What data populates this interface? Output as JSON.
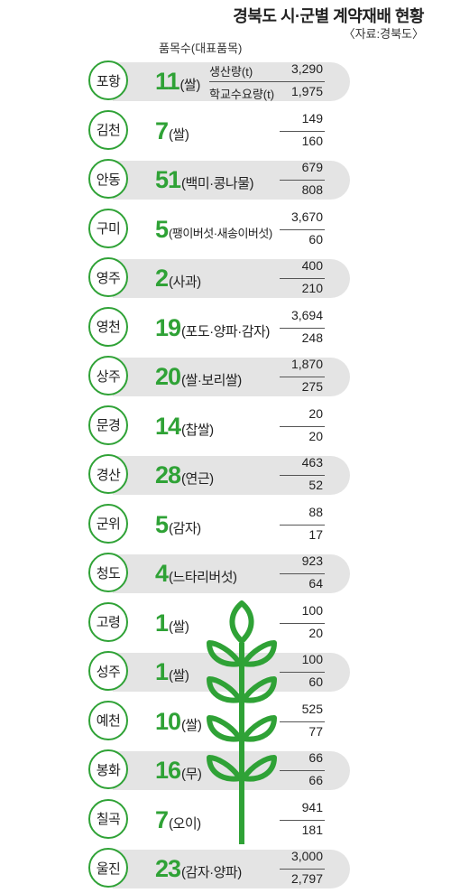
{
  "header": {
    "title": "경북도 시·군별 계약재배 현황",
    "source": "〈자료:경북도〉",
    "column_label": "품목수(대표품목)"
  },
  "legend": {
    "top_label": "생산량(t)",
    "bottom_label": "학교수요량(t)"
  },
  "accent_color": "#2fa236",
  "band_color": "#e4e4e4",
  "icons": [
    "leaf-stalk-icon"
  ],
  "chart_data": {
    "type": "table",
    "title": "경북도 시·군별 계약재배 현황",
    "source": "〈자료:경북도〉",
    "columns": [
      "시·군",
      "품목수",
      "대표품목",
      "생산량(t)",
      "학교수요량(t)"
    ],
    "rows": [
      {
        "region": "포항",
        "count": "11",
        "crop": "(쌀)",
        "production": "3,290",
        "demand": "1,975"
      },
      {
        "region": "김천",
        "count": "7",
        "crop": "(쌀)",
        "production": "149",
        "demand": "160"
      },
      {
        "region": "안동",
        "count": "51",
        "crop": "(백미·콩나물)",
        "production": "679",
        "demand": "808"
      },
      {
        "region": "구미",
        "count": "5",
        "crop": "(팽이버섯·새송이버섯)",
        "production": "3,670",
        "demand": "60"
      },
      {
        "region": "영주",
        "count": "2",
        "crop": "(사과)",
        "production": "400",
        "demand": "210"
      },
      {
        "region": "영천",
        "count": "19",
        "crop": "(포도·양파·감자)",
        "production": "3,694",
        "demand": "248"
      },
      {
        "region": "상주",
        "count": "20",
        "crop": "(쌀·보리쌀)",
        "production": "1,870",
        "demand": "275"
      },
      {
        "region": "문경",
        "count": "14",
        "crop": "(찹쌀)",
        "production": "20",
        "demand": "20"
      },
      {
        "region": "경산",
        "count": "28",
        "crop": "(연근)",
        "production": "463",
        "demand": "52"
      },
      {
        "region": "군위",
        "count": "5",
        "crop": "(감자)",
        "production": "88",
        "demand": "17"
      },
      {
        "region": "청도",
        "count": "4",
        "crop": "(느타리버섯)",
        "production": "923",
        "demand": "64"
      },
      {
        "region": "고령",
        "count": "1",
        "crop": "(쌀)",
        "production": "100",
        "demand": "20"
      },
      {
        "region": "성주",
        "count": "1",
        "crop": "(쌀)",
        "production": "100",
        "demand": "60"
      },
      {
        "region": "예천",
        "count": "10",
        "crop": "(쌀)",
        "production": "525",
        "demand": "77"
      },
      {
        "region": "봉화",
        "count": "16",
        "crop": "(무)",
        "production": "66",
        "demand": "66"
      },
      {
        "region": "칠곡",
        "count": "7",
        "crop": "(오이)",
        "production": "941",
        "demand": "181"
      },
      {
        "region": "울진",
        "count": "23",
        "crop": "(감자·양파)",
        "production": "3,000",
        "demand": "2,797"
      }
    ],
    "shaded_rows": [
      0,
      2,
      4,
      6,
      8,
      10,
      12,
      14,
      16
    ]
  }
}
